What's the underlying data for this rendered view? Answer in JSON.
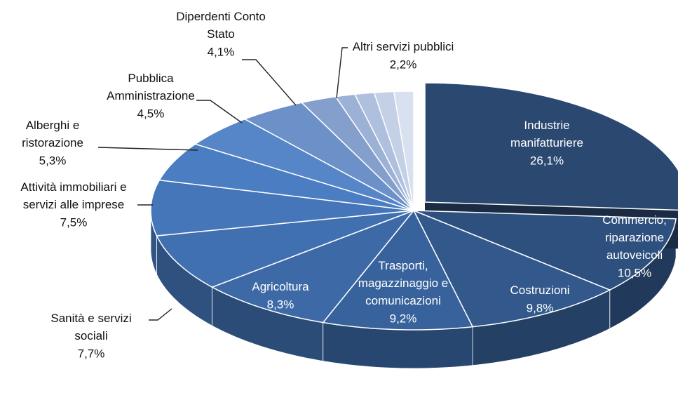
{
  "chart_data": {
    "type": "pie3d",
    "categories": [
      "Industrie\nmanifatturiere",
      "Commercio,\nriparazione\nautoveicoli",
      "Costruzioni",
      "Trasporti,\nmagazzinaggio e\ncomunicazioni",
      "Agricoltura",
      "Sanità e servizi\nsociali",
      "Attività immobiliari e\nservizi alle imprese",
      "Alberghi e\nristorazione",
      "Pubblica\nAmministrazione",
      "Diperdenti Conto\nStato",
      "Altri servizi pubblici",
      null,
      null,
      null,
      null
    ],
    "values": [
      26.1,
      10.5,
      9.8,
      9.2,
      8.3,
      7.7,
      7.5,
      5.3,
      4.5,
      4.1,
      2.2,
      1.2,
      1.2,
      1.2,
      1.2
    ],
    "value_labels": [
      "26,1%",
      "10,5%",
      "9,8%",
      "9,2%",
      "8,3%",
      "7,7%",
      "7,5%",
      "5,3%",
      "4,5%",
      "4,1%",
      "2,2%",
      null,
      null,
      null,
      null
    ],
    "colors": [
      "#2b4870",
      "#2e507e",
      "#33598c",
      "#38629b",
      "#3d6aa7",
      "#4170b1",
      "#4576ba",
      "#4a7dc2",
      "#5686c7",
      "#6b91c8",
      "#859fcc",
      "#9cb1d6",
      "#afc0de",
      "#c3d0e6",
      "#d8e1ef"
    ]
  }
}
